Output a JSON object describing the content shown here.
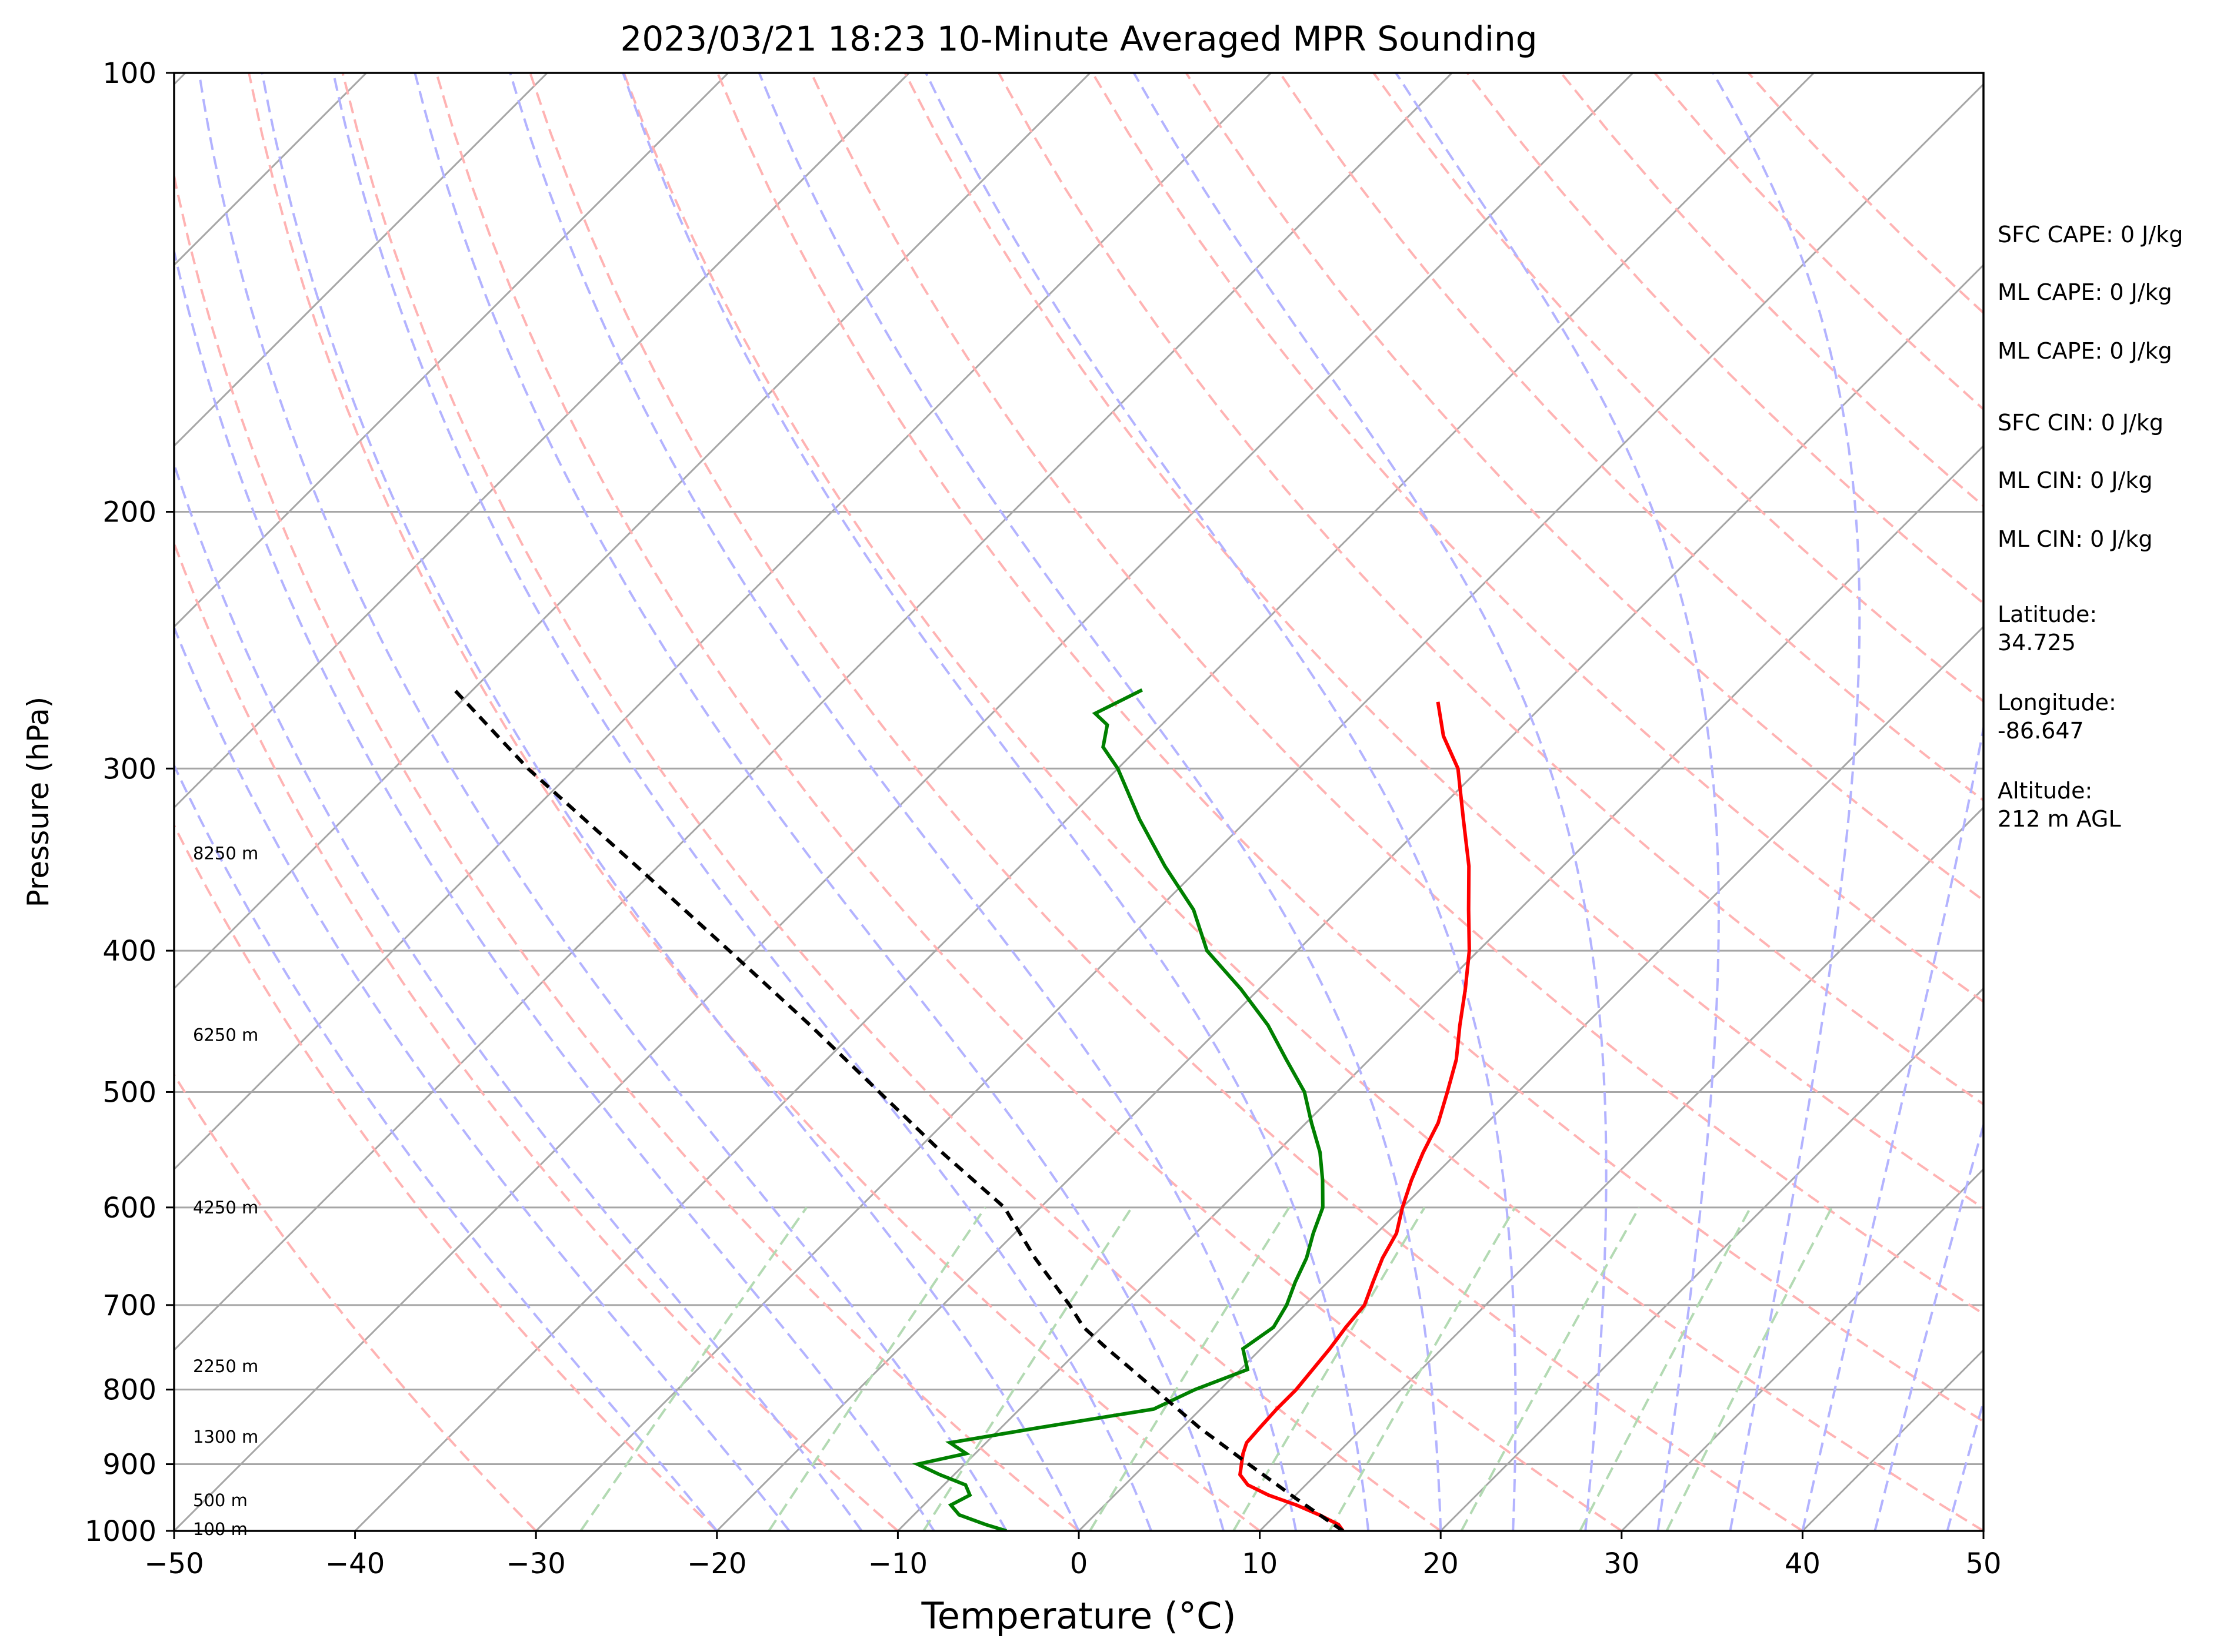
{
  "chart_data": {
    "type": "line",
    "title": "2023/03/21 18:23 10-Minute Averaged MPR Sounding",
    "xlabel": "Temperature (°C)",
    "ylabel": "Pressure (hPa)",
    "xlim": [
      -50,
      50
    ],
    "ylim": [
      1000,
      100
    ],
    "y_scale": "log",
    "skew_t": true,
    "grid": true,
    "x_ticks": [
      -50,
      -40,
      -30,
      -20,
      -10,
      0,
      10,
      20,
      30,
      40,
      50
    ],
    "x_tick_labels": [
      "−50",
      "−40",
      "−30",
      "−20",
      "−10",
      "0",
      "10",
      "20",
      "30",
      "40",
      "50"
    ],
    "y_ticks": [
      1000,
      900,
      800,
      700,
      600,
      500,
      400,
      300,
      200,
      100
    ],
    "y_tick_labels": [
      "1000",
      "900",
      "800",
      "700",
      "600",
      "500",
      "400",
      "300",
      "200",
      "100"
    ],
    "colors": {
      "temperature": "#ff0000",
      "dewpoint": "#008000",
      "parcel": "#000000",
      "isotherm": "#a6a6a6",
      "dry_adiabat": "#ffb3b3",
      "moist_adiabat": "#b3b3ff",
      "mixing_ratio": "#b3dab3"
    },
    "series": [
      {
        "key": "temperature",
        "pressure": [
          1000,
          990,
          975,
          960,
          945,
          930,
          915,
          900,
          885,
          870,
          850,
          825,
          800,
          775,
          750,
          725,
          700,
          675,
          650,
          625,
          600,
          575,
          550,
          525,
          500,
          475,
          450,
          425,
          400,
          375,
          350,
          325,
          300,
          285,
          270
        ],
        "values": [
          14.6,
          14.0,
          12.4,
          10.6,
          8.5,
          6.8,
          5.8,
          5.3,
          4.8,
          4.4,
          4.3,
          4.2,
          4.2,
          4.0,
          3.8,
          3.5,
          3.3,
          2.5,
          1.7,
          1.1,
          0.0,
          -1.0,
          -1.9,
          -2.7,
          -3.9,
          -5.2,
          -6.9,
          -8.6,
          -10.5,
          -12.8,
          -15.2,
          -18.1,
          -21.2,
          -23.8,
          -26.0
        ]
      },
      {
        "key": "dewpoint",
        "pressure": [
          1000,
          990,
          975,
          960,
          945,
          930,
          915,
          900,
          885,
          870,
          850,
          825,
          800,
          775,
          750,
          725,
          700,
          675,
          650,
          625,
          600,
          575,
          550,
          525,
          500,
          475,
          450,
          425,
          400,
          375,
          350,
          325,
          300,
          290,
          280,
          275,
          265
        ],
        "values": [
          -4.0,
          -5.5,
          -7.5,
          -8.5,
          -8.0,
          -8.8,
          -10.8,
          -12.6,
          -10.5,
          -12.0,
          -8.0,
          -2.6,
          -1.4,
          0.4,
          -1.0,
          -0.5,
          -1.0,
          -1.8,
          -2.5,
          -3.5,
          -4.4,
          -5.9,
          -7.6,
          -9.7,
          -11.8,
          -14.6,
          -17.5,
          -21.0,
          -25.0,
          -28.0,
          -32.0,
          -36.0,
          -40.0,
          -42.0,
          -43.0,
          -44.3,
          -43.0
        ]
      },
      {
        "key": "parcel",
        "pressure": [
          1000,
          950,
          900,
          850,
          800,
          775,
          750,
          725,
          700,
          650,
          600,
          550,
          500,
          450,
          400,
          350,
          300,
          265
        ],
        "values": [
          14.6,
          10.2,
          5.7,
          1.0,
          -3.6,
          -6.0,
          -8.5,
          -11.0,
          -13.0,
          -17.5,
          -22.0,
          -28.5,
          -35.3,
          -42.8,
          -51.4,
          -61.2,
          -72.6,
          -81.0
        ]
      }
    ],
    "height_labels": [
      {
        "label": "100 m",
        "pressure": 997
      },
      {
        "label": "500 m",
        "pressure": 953
      },
      {
        "label": "1300 m",
        "pressure": 862
      },
      {
        "label": "2250 m",
        "pressure": 771
      },
      {
        "label": "4250 m",
        "pressure": 600
      },
      {
        "label": "6250 m",
        "pressure": 457
      },
      {
        "label": "8250 m",
        "pressure": 343
      }
    ],
    "annotations": [
      "SFC CAPE: 0 J/kg",
      "ML CAPE: 0 J/kg",
      "ML CAPE: 0 J/kg",
      "SFC CIN: 0 J/kg",
      "ML CIN: 0 J/kg",
      "ML CIN: 0 J/kg",
      "Latitude:\n34.725",
      "Longitude:\n-86.647",
      "Altitude:\n212 m AGL"
    ]
  }
}
